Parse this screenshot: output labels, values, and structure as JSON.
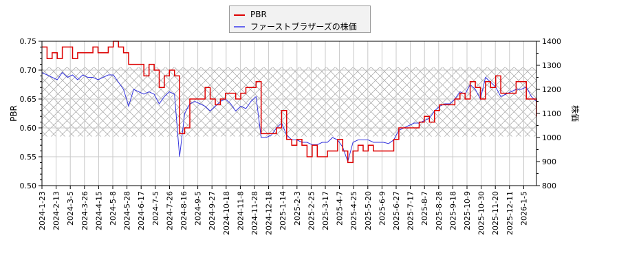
{
  "chart_data": {
    "type": "line",
    "title": "",
    "legend": [
      "PBR",
      "ファーストブラザーズの株価"
    ],
    "legend_position": "upper center",
    "grid": true,
    "left_axis": {
      "label": "PBR",
      "ylim": [
        0.5,
        0.75
      ],
      "ticks": [
        "0.50",
        "0.55",
        "0.60",
        "0.65",
        "0.70",
        "0.75"
      ]
    },
    "right_axis": {
      "label": "株価",
      "ylim": [
        800,
        1400
      ],
      "ticks": [
        "800",
        "900",
        "1000",
        "1100",
        "1200",
        "1300",
        "1400"
      ]
    },
    "x_tick_labels": [
      "2024-1-23",
      "2024-2-13",
      "2024-3-5",
      "2024-3-26",
      "2024-4-15",
      "2024-5-8",
      "2024-5-28",
      "2024-6-17",
      "2024-7-5",
      "2024-7-26",
      "2024-8-16",
      "2024-9-5",
      "2024-9-27",
      "2024-10-18",
      "2024-11-8",
      "2024-11-28",
      "2024-12-18",
      "2025-1-14",
      "2025-2-3",
      "2025-2-25",
      "2025-3-17",
      "2025-4-7",
      "2025-4-25",
      "2025-5-20",
      "2025-6-9",
      "2025-6-27",
      "2025-7-17",
      "2025-8-7",
      "2025-8-28",
      "2025-9-18",
      "2025-10-9",
      "2025-10-30",
      "2025-11-20",
      "2025-12-11",
      "2026-1-5"
    ],
    "shaded_band": {
      "pbr_range": [
        0.585,
        0.705
      ],
      "pattern": "crosshatch"
    },
    "series": [
      {
        "name": "PBR",
        "color": "#dd0000",
        "axis": "left",
        "values": [
          0.74,
          0.72,
          0.73,
          0.72,
          0.74,
          0.74,
          0.72,
          0.73,
          0.73,
          0.73,
          0.74,
          0.73,
          0.73,
          0.74,
          0.75,
          0.74,
          0.73,
          0.71,
          0.71,
          0.71,
          0.69,
          0.71,
          0.7,
          0.67,
          0.69,
          0.7,
          0.69,
          0.59,
          0.6,
          0.65,
          0.65,
          0.65,
          0.67,
          0.65,
          0.64,
          0.65,
          0.66,
          0.66,
          0.65,
          0.66,
          0.67,
          0.67,
          0.68,
          0.59,
          0.59,
          0.59,
          0.6,
          0.63,
          0.58,
          0.57,
          0.58,
          0.57,
          0.55,
          0.57,
          0.55,
          0.55,
          0.56,
          0.56,
          0.58,
          0.56,
          0.54,
          0.56,
          0.57,
          0.56,
          0.57,
          0.56,
          0.56,
          0.56,
          0.56,
          0.58,
          0.6,
          0.6,
          0.6,
          0.6,
          0.61,
          0.62,
          0.61,
          0.63,
          0.64,
          0.64,
          0.64,
          0.65,
          0.66,
          0.65,
          0.68,
          0.67,
          0.65,
          0.68,
          0.67,
          0.69,
          0.66,
          0.66,
          0.66,
          0.68,
          0.68,
          0.65,
          0.65,
          0.62
        ]
      },
      {
        "name": "ファーストブラザーズの株価",
        "color": "#3333dd",
        "axis": "right",
        "values": [
          1270,
          1260,
          1250,
          1240,
          1270,
          1250,
          1260,
          1240,
          1260,
          1250,
          1250,
          1240,
          1250,
          1260,
          1260,
          1230,
          1200,
          1130,
          1200,
          1190,
          1180,
          1190,
          1180,
          1140,
          1170,
          1190,
          1180,
          920,
          1100,
          1140,
          1150,
          1140,
          1130,
          1110,
          1130,
          1150,
          1160,
          1140,
          1110,
          1130,
          1120,
          1150,
          1170,
          1000,
          1000,
          1010,
          1040,
          1060,
          1010,
          990,
          990,
          980,
          980,
          970,
          970,
          980,
          980,
          1000,
          990,
          960,
          900,
          980,
          990,
          990,
          990,
          980,
          980,
          980,
          975,
          990,
          1030,
          1040,
          1050,
          1060,
          1060,
          1070,
          1080,
          1110,
          1130,
          1140,
          1140,
          1160,
          1190,
          1180,
          1220,
          1200,
          1160,
          1250,
          1230,
          1210,
          1170,
          1180,
          1190,
          1200,
          1200,
          1210,
          1170,
          1150
        ]
      }
    ]
  },
  "legend": {
    "items": [
      {
        "label": "PBR",
        "color": "#dd0000"
      },
      {
        "label": "ファーストブラザーズの株価",
        "color": "#3333dd"
      }
    ]
  }
}
